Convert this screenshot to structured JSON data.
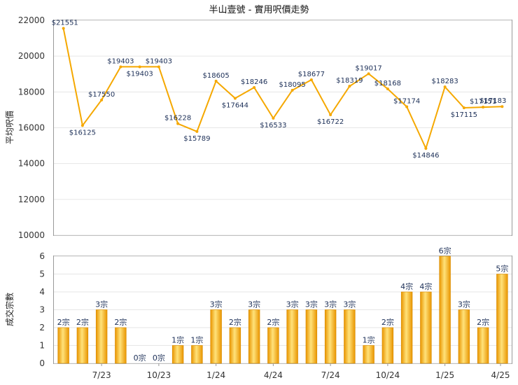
{
  "chart_data": [
    {
      "type": "line",
      "title": "半山壹號 - 實用呎價走勢",
      "ylabel": "平均呎價",
      "ylim": [
        10000,
        22000
      ],
      "yticks": [
        10000,
        12000,
        14000,
        16000,
        18000,
        20000,
        22000
      ],
      "grid": true,
      "series": [
        {
          "color": "#f5a800",
          "values": [
            21551,
            16125,
            17550,
            19403,
            19403,
            19403,
            16228,
            15789,
            18605,
            17644,
            18246,
            16533,
            18095,
            18677,
            16722,
            18319,
            19017,
            18168,
            17174,
            14846,
            18283,
            17115,
            17151,
            17183
          ],
          "labels": [
            "$21551",
            "$16125",
            "$17550",
            "$19403",
            "$19403",
            "$19403",
            "$16228",
            "$15789",
            "$18605",
            "$17644",
            "$18246",
            "$16533",
            "$18095",
            "$18677",
            "$16722",
            "$18319",
            "$19017",
            "$18168",
            "$17174",
            "$14846",
            "$18283",
            "$17115",
            "$17151",
            "$17183"
          ]
        }
      ]
    },
    {
      "type": "bar",
      "ylabel": "成交宗數",
      "ylim": [
        0,
        6
      ],
      "yticks": [
        0,
        1,
        2,
        3,
        4,
        5,
        6
      ],
      "grid": true,
      "x_tick_labels": [
        "7/23",
        "10/23",
        "1/24",
        "4/24",
        "7/24",
        "10/24",
        "1/25",
        "4/25"
      ],
      "values": [
        2,
        2,
        3,
        2,
        0,
        0,
        1,
        1,
        3,
        2,
        3,
        2,
        3,
        3,
        3,
        3,
        1,
        2,
        4,
        4,
        6,
        3,
        2,
        5
      ],
      "labels": [
        "2宗",
        "2宗",
        "3宗",
        "2宗",
        "0宗",
        "0宗",
        "1宗",
        "1宗",
        "3宗",
        "2宗",
        "3宗",
        "2宗",
        "3宗",
        "3宗",
        "3宗",
        "3宗",
        "1宗",
        "2宗",
        "4宗",
        "4宗",
        "6宗",
        "3宗",
        "2宗",
        "5宗"
      ],
      "color": "#f5a800"
    }
  ]
}
